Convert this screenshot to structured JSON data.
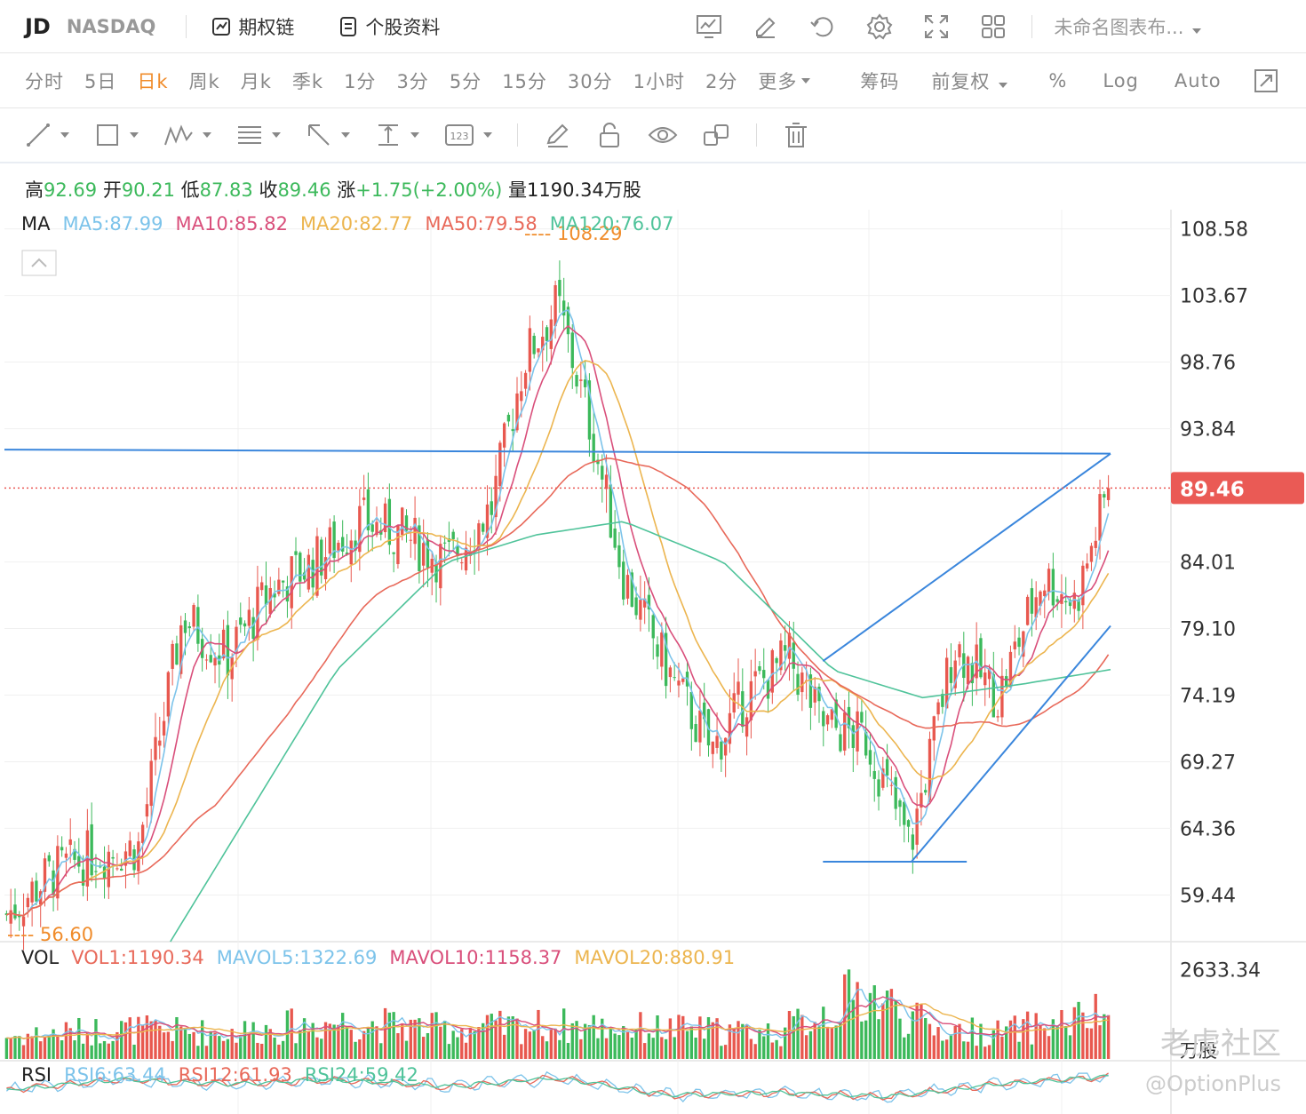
{
  "header": {
    "ticker": "JD",
    "exchange": "NASDAQ",
    "options_chain": "期权链",
    "stock_profile": "个股资料",
    "chart_name": "未命名图表布...",
    "icons": [
      "chart-icon",
      "edit-icon",
      "undo-icon",
      "gear-icon",
      "fullscreen-icon",
      "grid-icon"
    ]
  },
  "periods": {
    "items": [
      "分时",
      "5日",
      "日k",
      "周k",
      "月k",
      "季k",
      "1分",
      "3分",
      "5分",
      "15分",
      "30分",
      "1小时",
      "2分",
      "更多"
    ],
    "active": "日k",
    "chips": "筹码",
    "adjust": "前复权",
    "percent": "%",
    "log": "Log",
    "auto": "Auto"
  },
  "drawing_tools": [
    "line-tool-icon",
    "rectangle-tool-icon",
    "pattern-tool-icon",
    "fibonacci-tool-icon",
    "arrow-tool-icon",
    "measure-tool-icon",
    "number-tool-icon",
    "pencil-icon",
    "lock-icon",
    "eye-icon",
    "clone-icon",
    "trash-icon"
  ],
  "quote": {
    "high_label": "高",
    "high": "92.69",
    "open_label": "开",
    "open": "90.21",
    "low_label": "低",
    "low": "87.83",
    "close_label": "收",
    "close": "89.46",
    "change_label": "涨",
    "change": "+1.75(+2.00%)",
    "volume_label": "量",
    "volume": "1190.34万股"
  },
  "ma_legend": {
    "label": "MA",
    "items": [
      {
        "text": "MA5:87.99",
        "color": "#7cc3ea"
      },
      {
        "text": "MA10:85.82",
        "color": "#d94f7b"
      },
      {
        "text": "MA20:82.77",
        "color": "#ecb54f"
      },
      {
        "text": "MA50:79.58",
        "color": "#e8695a"
      },
      {
        "text": "MA120:76.07",
        "color": "#4fc39a"
      }
    ]
  },
  "vol_legend": {
    "label": "VOL",
    "items": [
      {
        "text": "VOL1:1190.34",
        "color": "#e8695a"
      },
      {
        "text": "MAVOL5:1322.69",
        "color": "#7cc3ea"
      },
      {
        "text": "MAVOL10:1158.37",
        "color": "#d94f7b"
      },
      {
        "text": "MAVOL20:880.91",
        "color": "#ecb54f"
      }
    ]
  },
  "rsi_legend": {
    "label": "RSI",
    "items": [
      {
        "text": "RSI6:63.44",
        "color": "#7cc3ea"
      },
      {
        "text": "RSI12:61.93",
        "color": "#e8695a"
      },
      {
        "text": "RSI24:59.42",
        "color": "#4fc39a"
      }
    ]
  },
  "colors": {
    "up": "#e8584f",
    "down": "#3cb95b",
    "price_tag": "#ea5a55",
    "annotation": "#f08c2b",
    "trendline": "#3a86dc"
  },
  "watermark": {
    "bottom": "老虎社区",
    "handle": "@OptionPlus"
  },
  "chart_data": {
    "type": "candlestick",
    "price_axis": {
      "ticks": [
        108.58,
        103.67,
        98.76,
        93.84,
        84.01,
        79.1,
        74.19,
        69.27,
        64.36,
        59.44
      ],
      "range": [
        56.0,
        110.0
      ]
    },
    "last_price": 89.46,
    "annotations": {
      "high": "108.29",
      "high_value": 108.29,
      "low": "56.60",
      "low_value": 56.6
    },
    "volume_axis": {
      "ticks": [
        "2633.34"
      ],
      "unit": "万股",
      "max": 3300
    },
    "trendlines": [
      {
        "p1": [
          0,
          92.3
        ],
        "p2": [
          1,
          92.0
        ]
      },
      {
        "p1": [
          0.74,
          76.7
        ],
        "p2": [
          1,
          92.0
        ]
      },
      {
        "p1": [
          0.82,
          61.9
        ],
        "p2": [
          1,
          79.3
        ]
      },
      {
        "p1": [
          0.74,
          61.9
        ],
        "p2": [
          0.87,
          61.9
        ]
      }
    ],
    "close_anchors": [
      [
        0,
        58
      ],
      [
        0.04,
        61
      ],
      [
        0.08,
        62.5
      ],
      [
        0.12,
        63
      ],
      [
        0.16,
        80
      ],
      [
        0.2,
        77
      ],
      [
        0.24,
        82
      ],
      [
        0.28,
        84
      ],
      [
        0.32,
        87
      ],
      [
        0.36,
        86
      ],
      [
        0.4,
        84
      ],
      [
        0.44,
        88
      ],
      [
        0.47,
        99
      ],
      [
        0.5,
        103
      ],
      [
        0.53,
        94
      ],
      [
        0.56,
        83
      ],
      [
        0.6,
        76
      ],
      [
        0.64,
        70
      ],
      [
        0.67,
        74
      ],
      [
        0.71,
        77
      ],
      [
        0.74,
        72
      ],
      [
        0.78,
        71
      ],
      [
        0.82,
        63
      ],
      [
        0.86,
        78
      ],
      [
        0.9,
        74
      ],
      [
        0.94,
        83
      ],
      [
        0.97,
        81
      ],
      [
        1,
        89.46
      ]
    ],
    "ma120_anchors": [
      [
        0.15,
        56
      ],
      [
        0.3,
        76
      ],
      [
        0.4,
        84
      ],
      [
        0.48,
        86
      ],
      [
        0.56,
        87
      ],
      [
        0.65,
        84
      ],
      [
        0.75,
        76
      ],
      [
        0.83,
        74
      ],
      [
        0.92,
        75
      ],
      [
        1,
        76.07
      ]
    ],
    "volume_anchors": [
      [
        0,
        600
      ],
      [
        0.1,
        800
      ],
      [
        0.2,
        700
      ],
      [
        0.3,
        1000
      ],
      [
        0.4,
        800
      ],
      [
        0.5,
        900
      ],
      [
        0.6,
        800
      ],
      [
        0.7,
        700
      ],
      [
        0.78,
        1800
      ],
      [
        0.84,
        800
      ],
      [
        0.9,
        700
      ],
      [
        1,
        1190
      ]
    ],
    "rsi_anchors": [
      [
        0,
        48
      ],
      [
        0.1,
        60
      ],
      [
        0.2,
        55
      ],
      [
        0.3,
        60
      ],
      [
        0.4,
        52
      ],
      [
        0.5,
        62
      ],
      [
        0.6,
        42
      ],
      [
        0.7,
        45
      ],
      [
        0.8,
        40
      ],
      [
        0.9,
        55
      ],
      [
        1,
        63.44
      ]
    ]
  }
}
